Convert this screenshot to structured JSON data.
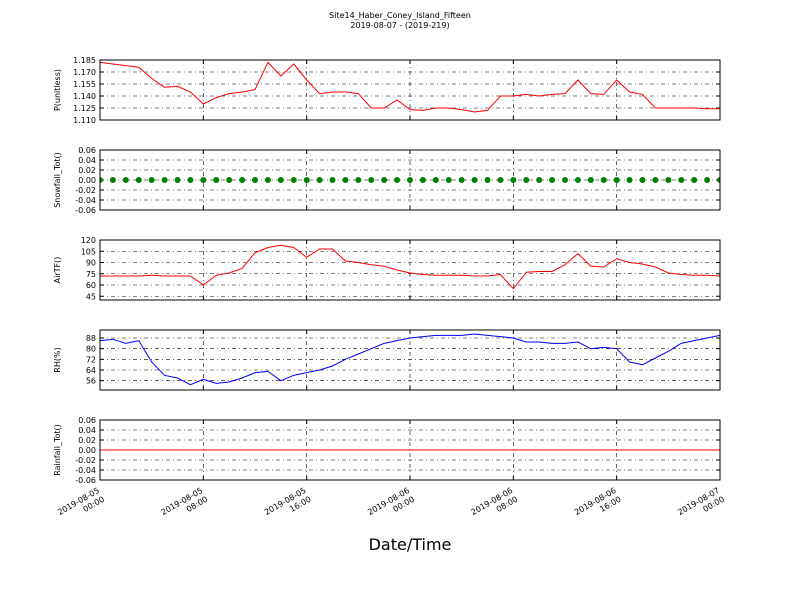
{
  "title": "Site14_Haber_Coney_Island_Fifteen",
  "subtitle": "2019-08-07 - (2019-219)",
  "xlabel": "Date/Time",
  "xlim": [
    "2019-08-05 00:00",
    "2019-08-07 00:00"
  ],
  "xticks": [
    "2019-08-05 00:00",
    "2019-08-05 08:00",
    "2019-08-05 16:00",
    "2019-08-06 00:00",
    "2019-08-06 08:00",
    "2019-08-06 16:00",
    "2019-08-07 00:00"
  ],
  "x": [
    "2019-08-05 00:00",
    "2019-08-05 01:00",
    "2019-08-05 02:00",
    "2019-08-05 03:00",
    "2019-08-05 04:00",
    "2019-08-05 05:00",
    "2019-08-05 06:00",
    "2019-08-05 07:00",
    "2019-08-05 08:00",
    "2019-08-05 09:00",
    "2019-08-05 10:00",
    "2019-08-05 11:00",
    "2019-08-05 12:00",
    "2019-08-05 13:00",
    "2019-08-05 14:00",
    "2019-08-05 15:00",
    "2019-08-05 16:00",
    "2019-08-05 17:00",
    "2019-08-05 18:00",
    "2019-08-05 19:00",
    "2019-08-05 20:00",
    "2019-08-05 21:00",
    "2019-08-05 22:00",
    "2019-08-05 23:00",
    "2019-08-06 00:00",
    "2019-08-06 01:00",
    "2019-08-06 02:00",
    "2019-08-06 03:00",
    "2019-08-06 04:00",
    "2019-08-06 05:00",
    "2019-08-06 06:00",
    "2019-08-06 07:00",
    "2019-08-06 08:00",
    "2019-08-06 09:00",
    "2019-08-06 10:00",
    "2019-08-06 11:00",
    "2019-08-06 12:00",
    "2019-08-06 13:00",
    "2019-08-06 14:00",
    "2019-08-06 15:00",
    "2019-08-06 16:00",
    "2019-08-06 17:00",
    "2019-08-06 18:00",
    "2019-08-06 19:00",
    "2019-08-06 20:00",
    "2019-08-06 21:00",
    "2019-08-06 22:00",
    "2019-08-06 23:00",
    "2019-08-07 00:00"
  ],
  "chart_data": [
    {
      "type": "line",
      "ylabel": "P(unitless)",
      "color": "#ff0000",
      "grid": true,
      "ylim": [
        1.11,
        1.185
      ],
      "yticks": [
        {
          "value": 1.11,
          "label": "1.110"
        },
        1.125,
        {
          "value": 1.14,
          "label": "1.140"
        },
        1.155,
        {
          "value": 1.17,
          "label": "1.170"
        },
        1.185
      ],
      "values": [
        1.182,
        1.18,
        1.178,
        1.176,
        1.162,
        1.151,
        1.152,
        1.145,
        1.13,
        1.138,
        1.143,
        1.145,
        1.148,
        1.182,
        1.165,
        1.18,
        1.16,
        1.143,
        1.145,
        1.145,
        1.143,
        1.125,
        1.125,
        1.135,
        1.123,
        1.122,
        1.125,
        1.125,
        1.123,
        1.12,
        1.122,
        1.14,
        1.14,
        1.142,
        1.14,
        1.142,
        1.143,
        1.16,
        1.143,
        1.142,
        1.16,
        1.145,
        1.142,
        1.125,
        1.125,
        1.125,
        1.125,
        1.124,
        1.124
      ]
    },
    {
      "type": "scatter",
      "ylabel": "Snowfall_Tot()",
      "color": "#008000",
      "grid": true,
      "ylim": [
        -0.06,
        0.06
      ],
      "yticks": [
        -0.06,
        -0.04,
        -0.02,
        {
          "value": 0,
          "label": "0.00"
        },
        0.02,
        0.04,
        0.06
      ],
      "values": [
        0,
        0,
        0,
        0,
        0,
        0,
        0,
        0,
        0,
        0,
        0,
        0,
        0,
        0,
        0,
        0,
        0,
        0,
        0,
        0,
        0,
        0,
        0,
        0,
        0,
        0,
        0,
        0,
        0,
        0,
        0,
        0,
        0,
        0,
        0,
        0,
        0,
        0,
        0,
        0,
        0,
        0,
        0,
        0,
        0,
        0,
        0,
        0,
        0
      ]
    },
    {
      "type": "line",
      "ylabel": "AirTF()",
      "color": "#ff0000",
      "grid": true,
      "ylim": [
        40,
        120
      ],
      "yticks": [
        45,
        60,
        75,
        90,
        105,
        120
      ],
      "values": [
        72,
        72,
        72,
        72,
        73,
        72,
        72,
        72,
        60,
        73,
        76,
        82,
        103,
        110,
        113,
        110,
        97,
        108,
        108,
        92,
        90,
        87,
        85,
        80,
        76,
        74,
        73,
        73,
        73,
        72,
        72,
        74,
        55,
        77,
        78,
        78,
        87,
        102,
        85,
        84,
        95,
        90,
        88,
        84,
        76,
        74,
        73,
        73,
        72
      ]
    },
    {
      "type": "line",
      "ylabel": "RH(%)",
      "color": "#0000ff",
      "grid": true,
      "ylim": [
        49,
        94
      ],
      "yticks": [
        56,
        64,
        72,
        80,
        88
      ],
      "values": [
        86,
        87,
        84,
        86,
        70,
        60,
        58,
        53,
        57,
        54,
        55,
        58,
        62,
        63,
        56,
        60,
        62,
        64,
        67,
        72,
        76,
        80,
        84,
        86,
        88,
        89,
        90,
        90,
        90,
        91,
        90,
        89,
        88,
        85,
        85,
        84,
        84,
        85,
        80,
        81,
        80,
        70,
        68,
        73,
        78,
        84,
        86,
        88,
        90
      ]
    },
    {
      "type": "line",
      "ylabel": "Rainfall_Tot()",
      "color": "#ff0000",
      "grid": true,
      "ylim": [
        -0.06,
        0.06
      ],
      "yticks": [
        -0.06,
        -0.04,
        -0.02,
        {
          "value": 0,
          "label": "0.00"
        },
        0.02,
        0.04,
        0.06
      ],
      "values": [
        0,
        0,
        0,
        0,
        0,
        0,
        0,
        0,
        0,
        0,
        0,
        0,
        0,
        0,
        0,
        0,
        0,
        0,
        0,
        0,
        0,
        0,
        0,
        0,
        0,
        0,
        0,
        0,
        0,
        0,
        0,
        0,
        0,
        0,
        0,
        0,
        0,
        0,
        0,
        0,
        0,
        0,
        0,
        0,
        0,
        0,
        0,
        0,
        0
      ]
    }
  ]
}
